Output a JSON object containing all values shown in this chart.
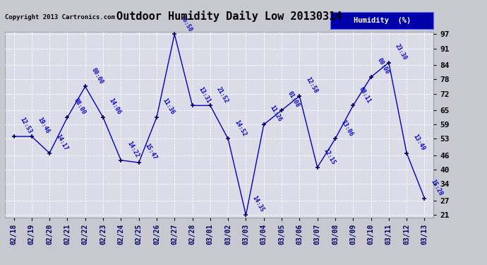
{
  "title": "Outdoor Humidity Daily Low 20130314",
  "copyright": "Copyright 2013 Cartronics.com",
  "legend_label": "Humidity  (%)",
  "x_labels": [
    "02/18",
    "02/19",
    "02/20",
    "02/21",
    "02/22",
    "02/23",
    "02/24",
    "02/25",
    "02/26",
    "02/27",
    "02/28",
    "03/01",
    "03/02",
    "03/03",
    "03/04",
    "03/05",
    "03/06",
    "03/07",
    "03/08",
    "03/09",
    "03/10",
    "03/11",
    "03/12",
    "03/13"
  ],
  "y_values": [
    54,
    54,
    47,
    62,
    75,
    62,
    44,
    43,
    62,
    97,
    67,
    67,
    53,
    21,
    59,
    65,
    71,
    41,
    53,
    67,
    79,
    85,
    47,
    28
  ],
  "time_labels": [
    "12:53",
    "19:46",
    "14:17",
    "08:00",
    "00:00",
    "14:06",
    "14:22",
    "15:47",
    "11:36",
    "06:50",
    "13:31",
    "21:52",
    "14:52",
    "14:35",
    "11:26",
    "01:08",
    "12:58",
    "12:15",
    "13:06",
    "08:11",
    "00:00",
    "23:30",
    "13:49",
    "15:20"
  ],
  "ylim_min": 21,
  "ylim_max": 97,
  "yticks": [
    21,
    27,
    34,
    40,
    46,
    53,
    59,
    65,
    72,
    78,
    84,
    91,
    97
  ],
  "line_color": "#0000bb",
  "marker_color": "#000066",
  "bg_color": "#c8c8d0",
  "plot_bg_color": "#dcdce8",
  "grid_color": "#ffffff",
  "label_color": "#0000cc",
  "title_color": "#000000",
  "copyright_color": "#000000",
  "legend_bg": "#0000aa",
  "legend_text_color": "#ffffff",
  "yaxis_label_color": "#000000"
}
